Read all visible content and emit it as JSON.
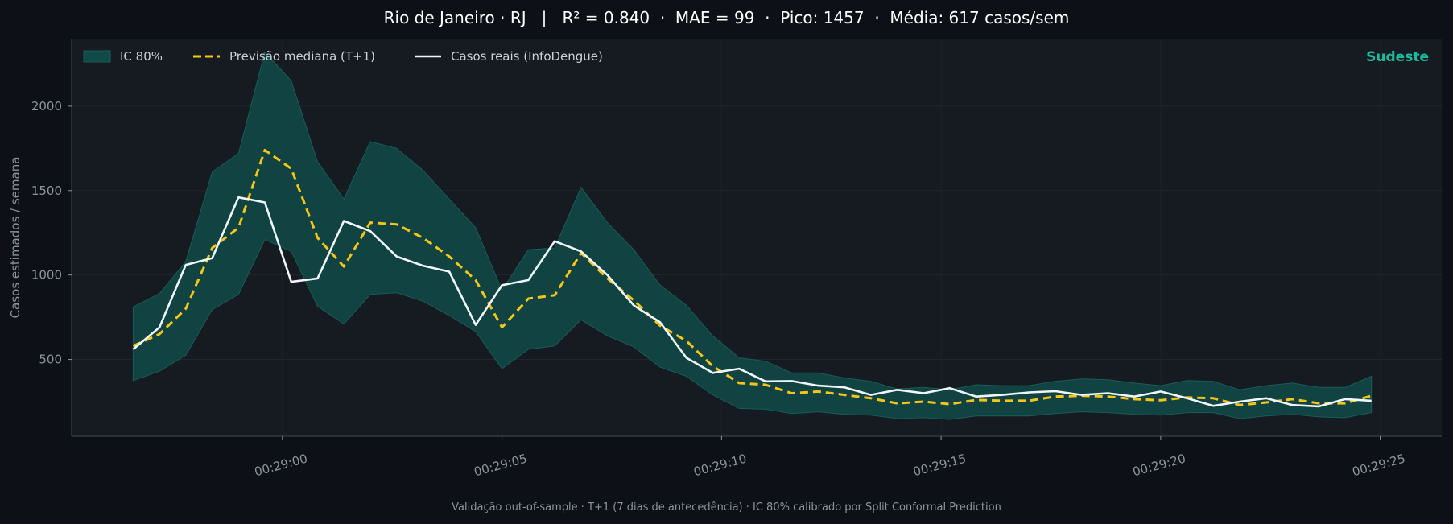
{
  "chart_data": {
    "type": "line",
    "title": "Rio de Janeiro · RJ   |   R² = 0.840  ·  MAE = 99  ·  Pico: 1457  ·  Média: 617 casos/sem",
    "footer": "Validação out-of-sample · T+1 (7 dias de antecedência) · IC 80% calibrado por Split Conformal Prediction",
    "region_label": "Sudeste",
    "ylabel": "Casos estimados / semana",
    "xlabel": "",
    "x_start_seconds": -3.4,
    "x_step_seconds": 0.6,
    "xlim_seconds": [
      -4.8,
      26.4
    ],
    "ylim": [
      45,
      2400
    ],
    "x_ticks": [
      {
        "value": 0,
        "label": "00:29:00"
      },
      {
        "value": 5,
        "label": "00:29:05"
      },
      {
        "value": 10,
        "label": "00:29:10"
      },
      {
        "value": 15,
        "label": "00:29:15"
      },
      {
        "value": 20,
        "label": "00:29:20"
      },
      {
        "value": 25,
        "label": "00:29:25"
      }
    ],
    "y_ticks": [
      {
        "value": 500,
        "label": "500"
      },
      {
        "value": 1000,
        "label": "1000"
      },
      {
        "value": 1500,
        "label": "1500"
      },
      {
        "value": 2000,
        "label": "2000"
      }
    ],
    "grid": true,
    "legend": {
      "placement": "top-left",
      "entries": [
        {
          "label": "IC 80%",
          "kind": "band"
        },
        {
          "label": "Previsão mediana (T+1)",
          "kind": "dashed"
        },
        {
          "label": "Casos reais (InfoDengue)",
          "kind": "solid"
        }
      ]
    },
    "colors": {
      "background": "#0d1117",
      "plot_background": "#161b22",
      "band": "#0f4a47",
      "band_edge": "#1a5c58",
      "forecast": "#f5c518",
      "actual": "#f0f6fc",
      "region": "#1abc9c",
      "axis_text": "#8b949e"
    },
    "series": [
      {
        "name": "Casos reais (InfoDengue)",
        "values": [
          560,
          690,
          1060,
          1100,
          1460,
          1430,
          960,
          980,
          1320,
          1260,
          1110,
          1055,
          1020,
          705,
          940,
          970,
          1200,
          1140,
          1000,
          820,
          720,
          510,
          420,
          445,
          370,
          372,
          345,
          335,
          290,
          320,
          300,
          330,
          280,
          290,
          305,
          312,
          290,
          300,
          280,
          310,
          270,
          225,
          250,
          270,
          230,
          222,
          265,
          255
        ]
      },
      {
        "name": "Previsão mediana (T+1)",
        "values": [
          580,
          650,
          800,
          1160,
          1280,
          1740,
          1630,
          1220,
          1050,
          1310,
          1300,
          1220,
          1110,
          970,
          690,
          860,
          880,
          1130,
          980,
          850,
          700,
          610,
          460,
          360,
          350,
          300,
          310,
          290,
          270,
          240,
          250,
          235,
          260,
          255,
          255,
          280,
          285,
          280,
          265,
          258,
          275,
          270,
          230,
          245,
          265,
          240,
          240,
          285
        ]
      },
      {
        "name": "IC 80% (limite superior)",
        "values": [
          810,
          890,
          1080,
          1610,
          1720,
          2320,
          2150,
          1670,
          1450,
          1790,
          1750,
          1620,
          1450,
          1280,
          910,
          1150,
          1160,
          1520,
          1310,
          1150,
          940,
          820,
          640,
          510,
          490,
          420,
          420,
          390,
          370,
          325,
          335,
          320,
          350,
          345,
          345,
          370,
          385,
          380,
          360,
          345,
          375,
          370,
          320,
          345,
          360,
          335,
          335,
          400
        ]
      },
      {
        "name": "IC 80% (limite inferior)",
        "values": [
          375,
          430,
          525,
          795,
          885,
          1210,
          1140,
          815,
          710,
          885,
          895,
          845,
          760,
          665,
          445,
          560,
          580,
          735,
          640,
          575,
          455,
          400,
          290,
          210,
          205,
          180,
          190,
          175,
          170,
          150,
          155,
          145,
          165,
          165,
          165,
          180,
          190,
          185,
          175,
          170,
          185,
          185,
          150,
          165,
          175,
          160,
          155,
          185
        ]
      }
    ]
  }
}
